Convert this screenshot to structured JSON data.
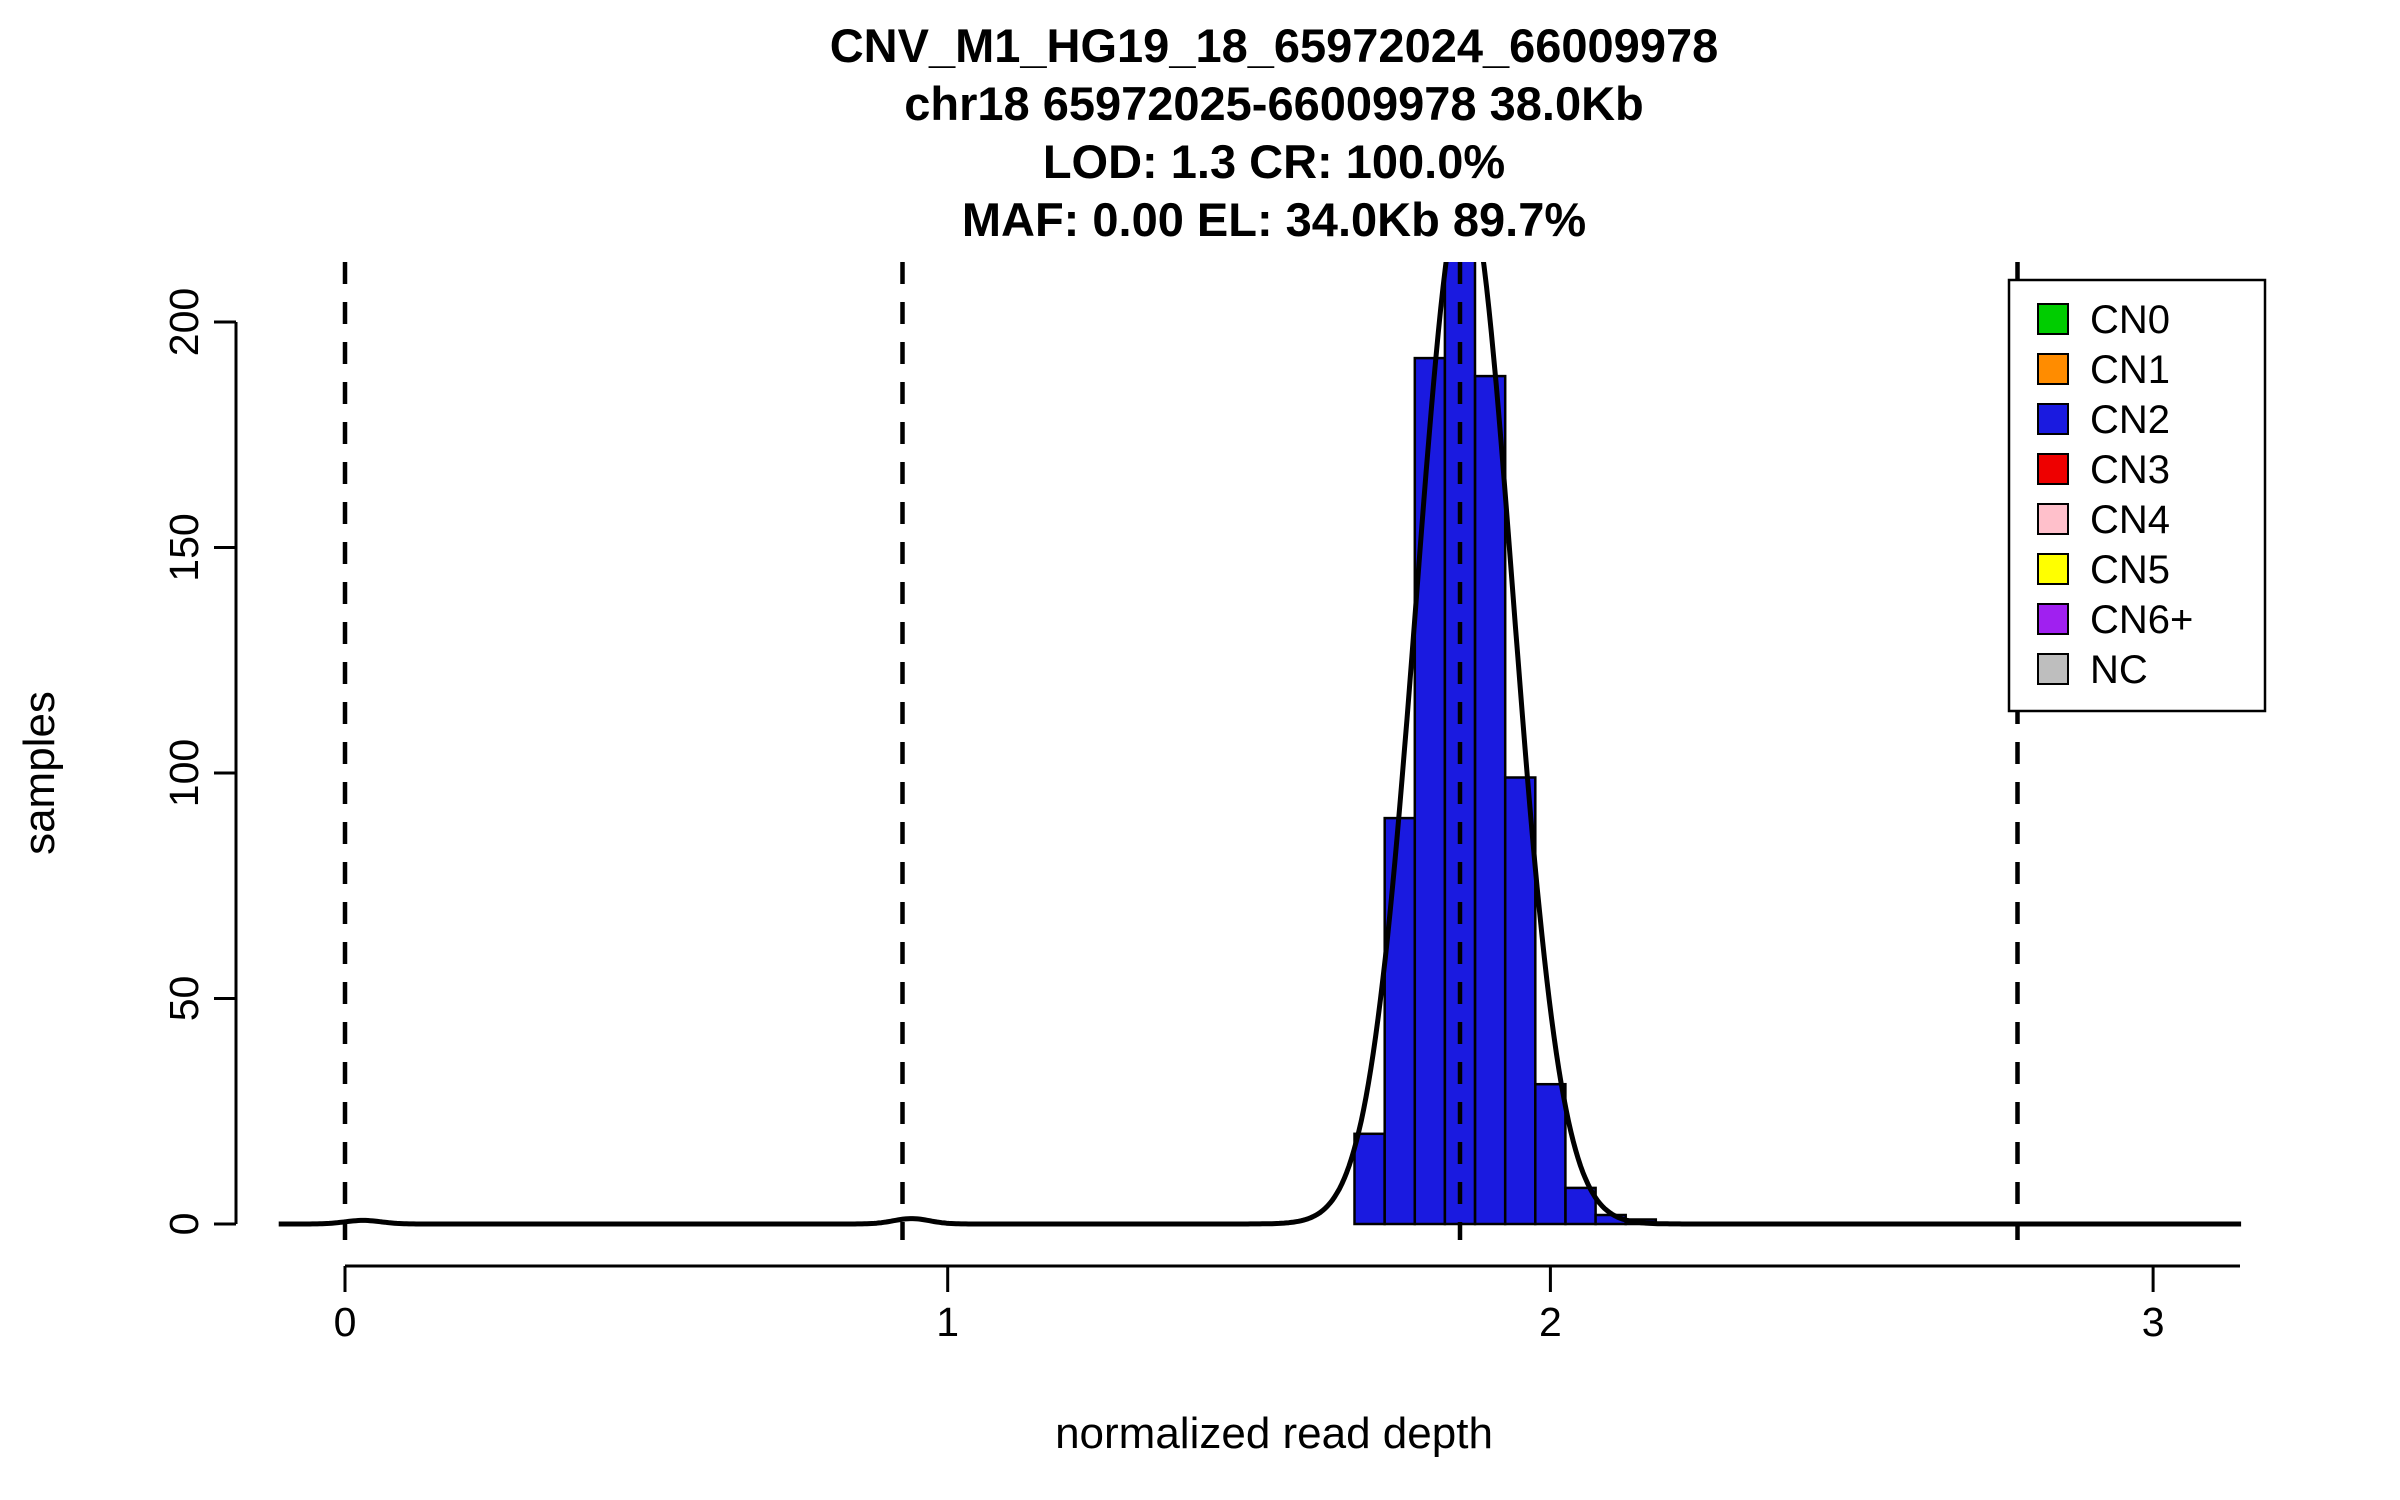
{
  "chart_data": {
    "type": "bar",
    "title_lines": [
      "CNV_M1_HG19_18_65972024_66009978",
      "chr18 65972025-66009978 38.0Kb",
      "LOD: 1.3 CR: 100.0%",
      "MAF: 0.00 EL: 34.0Kb 89.7%"
    ],
    "xlabel": "normalized read depth",
    "ylabel": "samples",
    "x_ticks": [
      0,
      1,
      2,
      3
    ],
    "y_ticks": [
      0,
      50,
      100,
      150,
      200
    ],
    "xlim": [
      -0.11,
      3.15
    ],
    "ylim": [
      0,
      213
    ],
    "grid": false,
    "cluster_mean_lines_x": [
      0,
      0.925,
      1.85,
      2.775
    ],
    "histogram": {
      "series": "CN2",
      "bar_color": "#1a1ae0",
      "bar_border_color": "#000000",
      "bin_width": 0.05,
      "bins": [
        {
          "x0": 1.675,
          "count": 20
        },
        {
          "x0": 1.725,
          "count": 90
        },
        {
          "x0": 1.775,
          "count": 192
        },
        {
          "x0": 1.825,
          "count": 220
        },
        {
          "x0": 1.875,
          "count": 188
        },
        {
          "x0": 1.925,
          "count": 99
        },
        {
          "x0": 1.975,
          "count": 31
        },
        {
          "x0": 2.025,
          "count": 8
        },
        {
          "x0": 2.075,
          "count": 2
        },
        {
          "x0": 2.125,
          "count": 1
        }
      ]
    },
    "density_curve": {
      "color": "#000000",
      "components": [
        {
          "mu": 1.858,
          "sigma": 0.08,
          "amp": 230
        },
        {
          "mu": 0.94,
          "sigma": 0.03,
          "amp": 1.2
        },
        {
          "mu": 0.03,
          "sigma": 0.03,
          "amp": 0.8
        }
      ]
    },
    "legend": {
      "position": "top-right",
      "items": [
        {
          "label": "CN0",
          "color": "#00cd00"
        },
        {
          "label": "CN1",
          "color": "#ff8c00"
        },
        {
          "label": "CN2",
          "color": "#1a1ae0"
        },
        {
          "label": "CN3",
          "color": "#ee0000"
        },
        {
          "label": "CN4",
          "color": "#ffc0cb"
        },
        {
          "label": "CN5",
          "color": "#ffff00"
        },
        {
          "label": "CN6+",
          "color": "#a020f0"
        },
        {
          "label": "NC",
          "color": "#bebebe"
        }
      ]
    }
  }
}
